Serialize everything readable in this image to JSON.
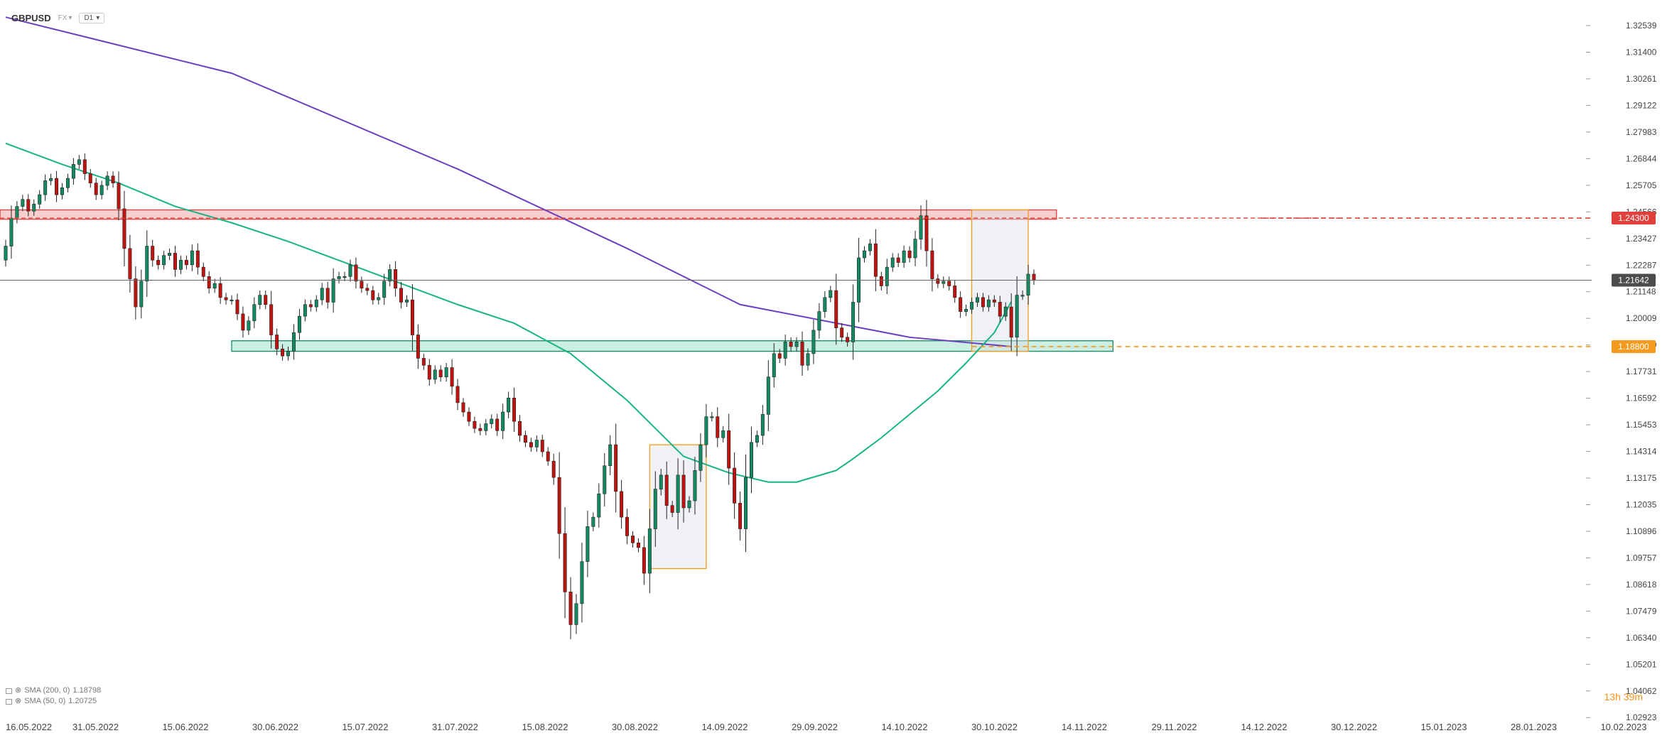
{
  "header": {
    "symbol": "GBPUSD",
    "market": "FX",
    "timeframe": "D1"
  },
  "legend": [
    {
      "label": "SMA (200, 0)",
      "value": "1.18798"
    },
    {
      "label": "SMA (50, 0)",
      "value": "1.20725"
    }
  ],
  "countdown": "13h 39m",
  "colors": {
    "bull": "#138a62",
    "bear": "#c0120f",
    "sma200": "#6b3fc0",
    "sma50": "#17b486",
    "resistance": "#e0403c",
    "support": "#f39a1f",
    "last": "#4c4c4c"
  },
  "chart_data": {
    "type": "candlestick",
    "ylim": [
      1.0293,
      1.3254
    ],
    "y_ticks": [
      "1.32539",
      "1.31400",
      "1.30261",
      "1.29122",
      "1.27983",
      "1.26844",
      "1.25705",
      "1.24566",
      "1.23427",
      "1.22287",
      "1.21148",
      "1.20009",
      "1.18870",
      "1.17731",
      "1.16592",
      "1.15453",
      "1.14314",
      "1.13175",
      "1.12035",
      "1.10896",
      "1.09757",
      "1.08618",
      "1.07479",
      "1.06340",
      "1.05201",
      "1.04062",
      "1.02923"
    ],
    "x_ticks": [
      "16.05.2022",
      "31.05.2022",
      "15.06.2022",
      "30.06.2022",
      "15.07.2022",
      "31.07.2022",
      "15.08.2022",
      "30.08.2022",
      "14.09.2022",
      "29.09.2022",
      "14.10.2022",
      "30.10.2022",
      "14.11.2022",
      "29.11.2022",
      "14.12.2022",
      "30.12.2022",
      "15.01.2023",
      "28.01.2023",
      "10.02.2023"
    ],
    "price_labels": {
      "resistance": "1.24300",
      "last": "1.21642",
      "support": "1.18800"
    },
    "levels": {
      "resistance": 1.243,
      "last": 1.21642,
      "support": 1.188
    },
    "closes": [
      1.231,
      1.243,
      1.248,
      1.251,
      1.246,
      1.249,
      1.253,
      1.259,
      1.26,
      1.253,
      1.256,
      1.26,
      1.266,
      1.268,
      1.262,
      1.258,
      1.253,
      1.257,
      1.261,
      1.258,
      1.247,
      1.23,
      1.217,
      1.205,
      1.216,
      1.231,
      1.225,
      1.223,
      1.227,
      1.228,
      1.221,
      1.225,
      1.223,
      1.229,
      1.222,
      1.218,
      1.213,
      1.215,
      1.209,
      1.208,
      1.208,
      1.202,
      1.195,
      1.199,
      1.206,
      1.21,
      1.206,
      1.193,
      1.187,
      1.184,
      1.186,
      1.194,
      1.201,
      1.206,
      1.205,
      1.208,
      1.213,
      1.207,
      1.217,
      1.218,
      1.218,
      1.223,
      1.216,
      1.213,
      1.212,
      1.208,
      1.209,
      1.216,
      1.221,
      1.213,
      1.207,
      1.208,
      1.193,
      1.183,
      1.18,
      1.174,
      1.178,
      1.175,
      1.179,
      1.171,
      1.164,
      1.16,
      1.156,
      1.153,
      1.152,
      1.155,
      1.157,
      1.152,
      1.16,
      1.166,
      1.156,
      1.15,
      1.147,
      1.145,
      1.148,
      1.143,
      1.139,
      1.132,
      1.108,
      1.083,
      1.069,
      1.078,
      1.096,
      1.111,
      1.115,
      1.125,
      1.137,
      1.146,
      1.126,
      1.115,
      1.107,
      1.104,
      1.102,
      1.091,
      1.11,
      1.127,
      1.133,
      1.12,
      1.117,
      1.133,
      1.119,
      1.122,
      1.135,
      1.146,
      1.158,
      1.158,
      1.149,
      1.152,
      1.136,
      1.121,
      1.11,
      1.132,
      1.147,
      1.15,
      1.159,
      1.175,
      1.185,
      1.183,
      1.19,
      1.188,
      1.19,
      1.18,
      1.185,
      1.195,
      1.203,
      1.209,
      1.212,
      1.196,
      1.192,
      1.19,
      1.207,
      1.226,
      1.229,
      1.232,
      1.218,
      1.214,
      1.222,
      1.226,
      1.224,
      1.229,
      1.226,
      1.234,
      1.244,
      1.229,
      1.217,
      1.215,
      1.216,
      1.214,
      1.209,
      1.203,
      1.204,
      1.207,
      1.209,
      1.205,
      1.208,
      1.207,
      1.201,
      1.205,
      1.192,
      1.21,
      1.21,
      1.219,
      1.2164
    ],
    "series": [
      {
        "name": "SMA (200, 0)",
        "x_index": [
          0,
          40,
          80,
          110,
          130,
          160,
          178
        ],
        "values": [
          1.329,
          1.305,
          1.264,
          1.23,
          1.206,
          1.192,
          1.188
        ]
      },
      {
        "name": "SMA (50, 0)",
        "x_index": [
          0,
          10,
          20,
          30,
          40,
          50,
          60,
          70,
          80,
          90,
          100,
          110,
          120,
          128,
          135,
          140,
          147,
          150,
          155,
          160,
          165,
          170,
          175,
          178
        ],
        "values": [
          1.275,
          1.266,
          1.258,
          1.248,
          1.241,
          1.233,
          1.224,
          1.215,
          1.206,
          1.198,
          1.185,
          1.165,
          1.141,
          1.134,
          1.13,
          1.13,
          1.135,
          1.14,
          1.149,
          1.159,
          1.169,
          1.181,
          1.194,
          1.2072
        ]
      }
    ],
    "zones": [
      {
        "kind": "resistance",
        "x_index": [
          -1,
          186
        ],
        "y": [
          1.2425,
          1.2465
        ]
      },
      {
        "kind": "support",
        "x_index": [
          40,
          196
        ],
        "y": [
          1.186,
          1.1905
        ]
      },
      {
        "kind": "box",
        "x_index": [
          114,
          124
        ],
        "y": [
          1.093,
          1.146
        ]
      },
      {
        "kind": "box",
        "x_index": [
          171,
          181
        ],
        "y": [
          1.186,
          1.2465
        ]
      }
    ]
  }
}
